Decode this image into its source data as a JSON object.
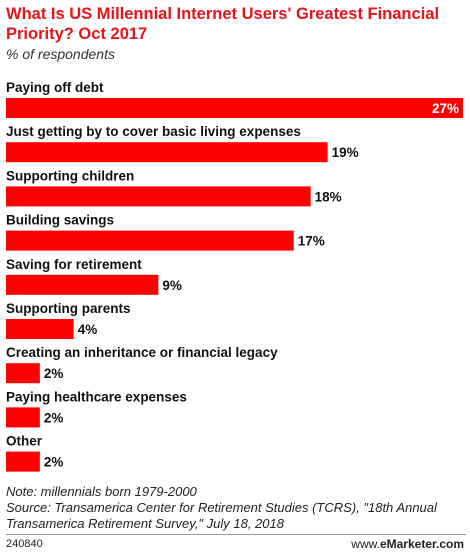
{
  "header": {
    "title": "What Is US Millennial Internet Users' Greatest Financial Priority? Oct 2017",
    "subtitle": "% of respondents"
  },
  "chart_data": {
    "type": "bar",
    "orientation": "horizontal",
    "title": "What Is US Millennial Internet Users' Greatest Financial Priority? Oct 2017",
    "subtitle": "% of respondents",
    "categories": [
      "Paying off debt",
      "Just getting by to cover basic living expenses",
      "Supporting children",
      "Building savings",
      "Saving for retirement",
      "Supporting parents",
      "Creating an inheritance or financial legacy",
      "Paying healthcare expenses",
      "Other"
    ],
    "values": [
      27,
      19,
      18,
      17,
      9,
      4,
      2,
      2,
      2
    ],
    "value_suffix": "%",
    "xlim": [
      0,
      27
    ],
    "grid": false,
    "bar_color": "#ff0000"
  },
  "footer": {
    "note": "Note: millennials born 1979-2000",
    "source": "Source: Transamerica Center for Retirement Studies (TCRS), \"18th Annual Transamerica Retirement Survey,\" July 18, 2018",
    "chart_id": "240840",
    "brand_prefix": "www.",
    "brand_name": "eMarketer.com"
  }
}
